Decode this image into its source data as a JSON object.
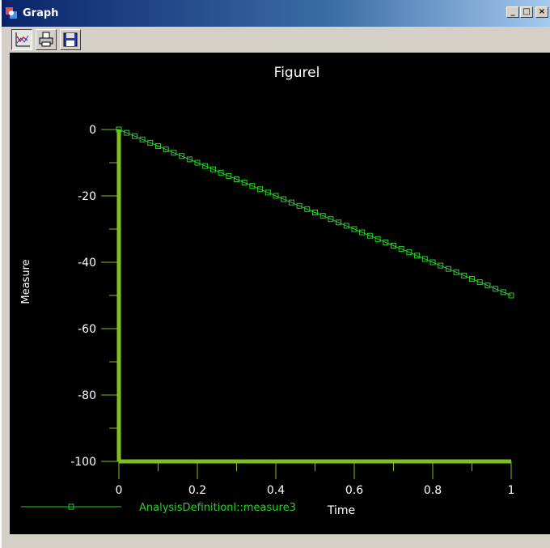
{
  "window": {
    "title": "Graph"
  },
  "titlebar_buttons": {
    "minimize": "_",
    "maximize": "□",
    "close": "×"
  },
  "toolbar": [
    {
      "icon": "chart-icon"
    },
    {
      "icon": "print-icon"
    },
    {
      "icon": "save-icon"
    }
  ],
  "colors": {
    "background": "#000000",
    "axis": "#7fbf1f",
    "series": "#22d422",
    "text": "#ffffff"
  },
  "chart_data": {
    "type": "line",
    "title": "Figurel",
    "xlabel": "Time",
    "ylabel": "Measure",
    "xlim": [
      0,
      1
    ],
    "ylim": [
      -100,
      0
    ],
    "xticks": [
      "0",
      "0.2",
      "0.4",
      "0.6",
      "0.8",
      "1"
    ],
    "yticks": [
      "0",
      "-20",
      "-40",
      "-60",
      "-80",
      "-100"
    ],
    "grid": false,
    "legend_position": "bottom-left",
    "series": [
      {
        "name": "AnalysisDefinitionl::measure3",
        "marker": "square",
        "x": [
          0,
          0.02,
          0.04,
          0.06,
          0.08,
          0.1,
          0.12,
          0.14,
          0.16,
          0.18,
          0.2,
          0.22,
          0.24,
          0.26,
          0.28,
          0.3,
          0.32,
          0.34,
          0.36,
          0.38,
          0.4,
          0.42,
          0.44,
          0.46,
          0.48,
          0.5,
          0.52,
          0.54,
          0.56,
          0.58,
          0.6,
          0.62,
          0.64,
          0.66,
          0.68,
          0.7,
          0.72,
          0.74,
          0.76,
          0.78,
          0.8,
          0.82,
          0.84,
          0.86,
          0.88,
          0.9,
          0.92,
          0.94,
          0.96,
          0.98,
          1
        ],
        "y": [
          0,
          -1,
          -2,
          -3,
          -4,
          -5,
          -6,
          -7,
          -8,
          -9,
          -10,
          -11,
          -12,
          -13,
          -14,
          -15,
          -16,
          -17,
          -18,
          -19,
          -20,
          -21,
          -22,
          -23,
          -24,
          -25,
          -26,
          -27,
          -28,
          -29,
          -30,
          -31,
          -32,
          -33,
          -34,
          -35,
          -36,
          -37,
          -38,
          -39,
          -40,
          -41,
          -42,
          -43,
          -44,
          -45,
          -46,
          -47,
          -48,
          -49,
          -50
        ]
      }
    ]
  }
}
